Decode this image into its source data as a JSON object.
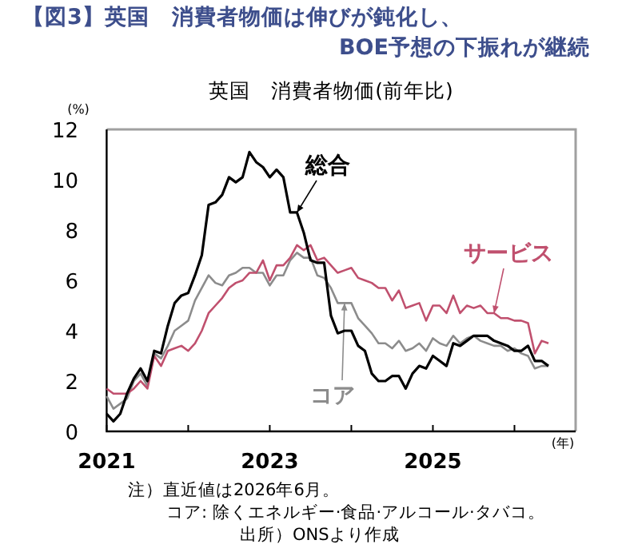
{
  "chart_data": {
    "type": "line",
    "title": "【図3】英国　消費者物価は伸びが鈍化し、BOE予想の下振れが継続",
    "subtitle": "英国　消費者物価(前年比)",
    "ylabel": "(%)",
    "xlabel": "(年)",
    "x": [
      "2021-01",
      "2021-02",
      "2021-03",
      "2021-04",
      "2021-05",
      "2021-06",
      "2021-07",
      "2021-08",
      "2021-09",
      "2021-10",
      "2021-11",
      "2021-12",
      "2022-01",
      "2022-02",
      "2022-03",
      "2022-04",
      "2022-05",
      "2022-06",
      "2022-07",
      "2022-08",
      "2022-09",
      "2022-10",
      "2022-11",
      "2022-12",
      "2023-01",
      "2023-02",
      "2023-03",
      "2023-04",
      "2023-05",
      "2023-06",
      "2023-07",
      "2023-08",
      "2023-09",
      "2023-10",
      "2023-11",
      "2023-12",
      "2024-01",
      "2024-02",
      "2024-03",
      "2024-04",
      "2024-05",
      "2024-06",
      "2024-07",
      "2024-08",
      "2024-09",
      "2024-10",
      "2024-11",
      "2024-12",
      "2025-01",
      "2025-02",
      "2025-03",
      "2025-04",
      "2025-05",
      "2025-06",
      "2025-07",
      "2025-08",
      "2025-09",
      "2025-10",
      "2025-11",
      "2025-12",
      "2026-01",
      "2026-02",
      "2026-03",
      "2026-04",
      "2026-05",
      "2026-06"
    ],
    "xlim": [
      "2021-01",
      "2026-10"
    ],
    "xticks": [
      {
        "value": "2021-01",
        "label": "2021"
      },
      {
        "value": "2022-01",
        "label": null
      },
      {
        "value": "2023-01",
        "label": "2023"
      },
      {
        "value": "2024-01",
        "label": null
      },
      {
        "value": "2025-01",
        "label": "2025"
      },
      {
        "value": "2026-01",
        "label": null
      }
    ],
    "ylim": [
      0,
      12
    ],
    "yticks": [
      0,
      2,
      4,
      6,
      8,
      10,
      12
    ],
    "grid": false,
    "series": [
      {
        "name": "総合",
        "color": "#000000",
        "values": [
          0.7,
          0.4,
          0.7,
          1.5,
          2.1,
          2.5,
          2.0,
          3.2,
          3.1,
          4.2,
          5.1,
          5.4,
          5.5,
          6.2,
          7.0,
          9.0,
          9.1,
          9.4,
          10.1,
          9.9,
          10.1,
          11.1,
          10.7,
          10.5,
          10.1,
          10.4,
          10.1,
          8.7,
          8.7,
          7.9,
          6.8,
          6.7,
          6.7,
          4.6,
          3.9,
          4.0,
          4.0,
          3.4,
          3.2,
          2.3,
          2.0,
          2.0,
          2.2,
          2.2,
          1.7,
          2.3,
          2.6,
          2.5,
          3.0,
          2.8,
          2.6,
          3.5,
          3.4,
          3.6,
          3.8,
          3.8,
          3.8,
          3.6,
          3.5,
          3.4,
          3.2,
          3.2,
          3.4,
          2.8,
          2.8,
          2.6
        ]
      },
      {
        "name": "コア",
        "color": "#8c8c8c",
        "values": [
          1.4,
          0.9,
          1.1,
          1.3,
          2.0,
          2.3,
          1.8,
          3.1,
          2.9,
          3.4,
          4.0,
          4.2,
          4.4,
          5.2,
          5.7,
          6.2,
          5.9,
          5.8,
          6.2,
          6.3,
          6.5,
          6.5,
          6.3,
          6.3,
          5.8,
          6.2,
          6.2,
          6.8,
          7.1,
          6.9,
          6.9,
          6.2,
          6.1,
          5.7,
          5.1,
          5.1,
          5.1,
          4.5,
          4.2,
          3.9,
          3.5,
          3.5,
          3.3,
          3.6,
          3.2,
          3.3,
          3.5,
          3.2,
          3.7,
          3.5,
          3.4,
          3.8,
          3.5,
          3.7,
          3.8,
          3.6,
          3.5,
          3.4,
          3.4,
          3.2,
          3.3,
          3.1,
          3.0,
          2.5,
          2.6,
          2.6
        ]
      },
      {
        "name": "サービス",
        "color": "#c0506e",
        "values": [
          1.7,
          1.5,
          1.5,
          1.5,
          1.7,
          2.0,
          1.7,
          3.0,
          2.6,
          3.2,
          3.3,
          3.4,
          3.2,
          3.5,
          4.0,
          4.7,
          5.0,
          5.3,
          5.7,
          5.9,
          6.0,
          6.3,
          6.3,
          6.8,
          6.0,
          6.6,
          6.6,
          6.9,
          7.4,
          7.2,
          7.4,
          6.8,
          6.9,
          6.6,
          6.3,
          6.4,
          6.5,
          6.1,
          6.0,
          5.9,
          5.7,
          5.7,
          5.2,
          5.6,
          4.9,
          5.0,
          5.1,
          4.4,
          5.0,
          5.0,
          4.7,
          5.4,
          4.7,
          5.0,
          4.9,
          5.0,
          4.7,
          4.7,
          4.5,
          4.5,
          4.4,
          4.4,
          4.3,
          3.1,
          3.6,
          3.5
        ]
      }
    ],
    "annotations": [
      "注）直近値は2026年6月。",
      "コア: 除くエネルギー·食品·アルコール·タバコ。",
      "出所）ONSより作成"
    ]
  }
}
